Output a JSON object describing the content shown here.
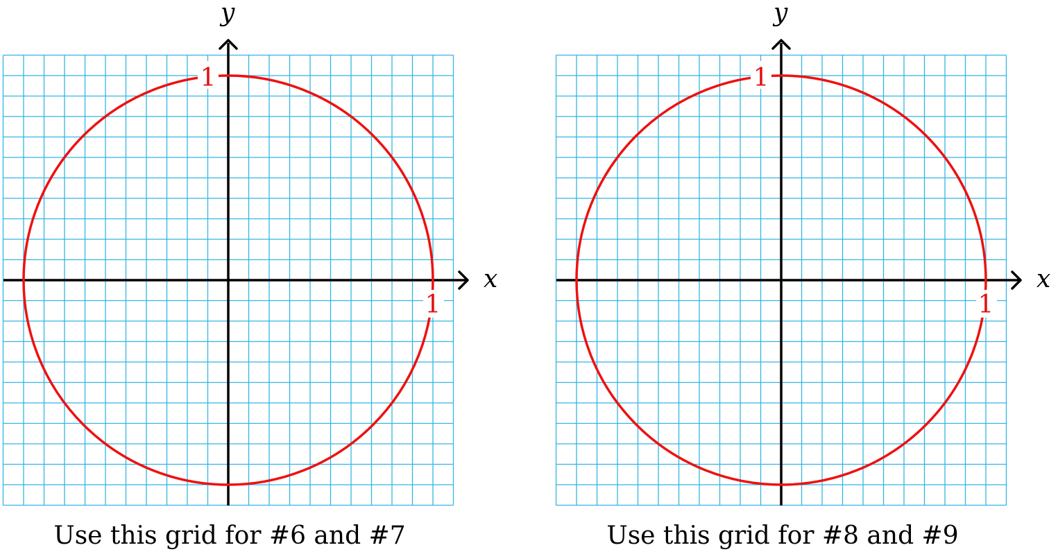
{
  "axes": {
    "x_label": "x",
    "y_label": "y"
  },
  "circle": {
    "radius_label": "1",
    "color": "#ee1111"
  },
  "grid": {
    "color": "#33b5e5",
    "range_units": [
      -11,
      11
    ]
  },
  "panels": [
    {
      "id": "left",
      "caption": "Use this grid for #6 and #7"
    },
    {
      "id": "right",
      "caption": "Use this grid for #8 and #9"
    }
  ]
}
